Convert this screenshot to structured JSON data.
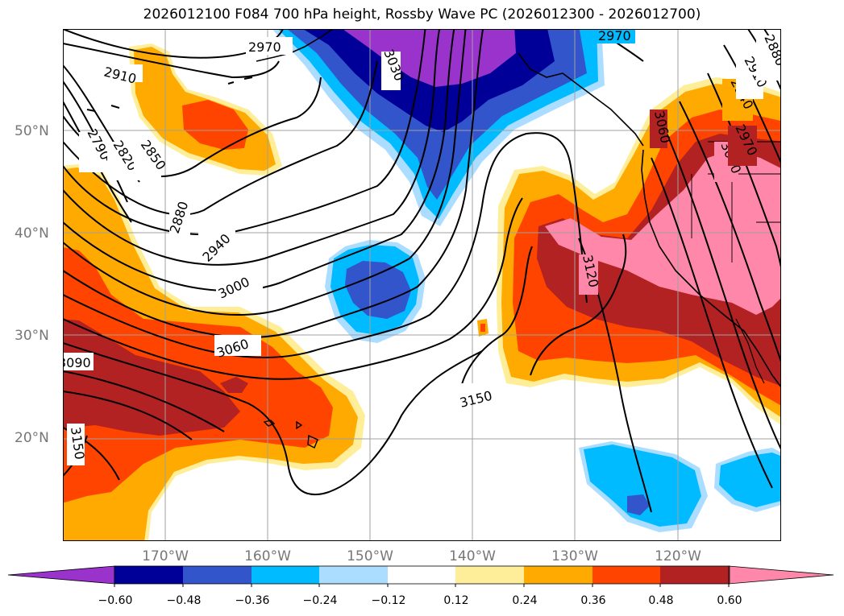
{
  "title": "2026012100 F084 700 hPa height, Rossby Wave PC (2026012300 - 2026012700)",
  "map": {
    "lat_labels": [
      "50°N",
      "40°N",
      "30°N",
      "20°N"
    ],
    "lon_labels": [
      "170°W",
      "160°W",
      "150°W",
      "140°W",
      "130°W",
      "120°W"
    ],
    "contour_labels": [
      "2970",
      "3030",
      "2910",
      "2790",
      "2820",
      "2850",
      "2880",
      "2940",
      "3000",
      "3060",
      "3090",
      "3150",
      "3150",
      "3120",
      "3060",
      "3000",
      "2970",
      "2940",
      "2910",
      "2880",
      "2970"
    ]
  },
  "colorbar": {
    "ticks": [
      "−0.60",
      "−0.48",
      "−0.36",
      "−0.24",
      "−0.12",
      "0.12",
      "0.24",
      "0.36",
      "0.48",
      "0.60"
    ],
    "colors": [
      "#9933cc",
      "#000099",
      "#3355cc",
      "#00bbff",
      "#aaddff",
      "#ffffff",
      "#ffee99",
      "#ffaa00",
      "#ff4400",
      "#b22222",
      "#ff88aa"
    ]
  }
}
